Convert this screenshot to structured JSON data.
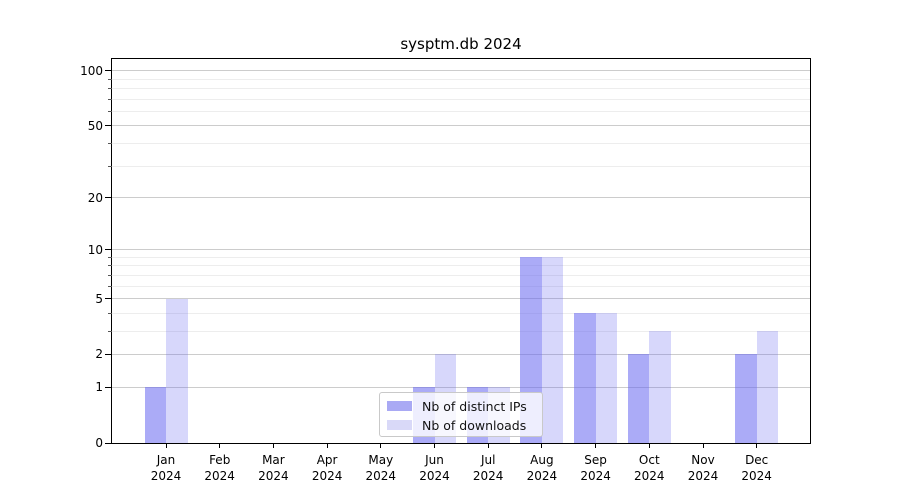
{
  "chart_data": {
    "type": "bar",
    "title": "sysptm.db 2024",
    "categories": [
      "Jan",
      "Feb",
      "Mar",
      "Apr",
      "May",
      "Jun",
      "Jul",
      "Aug",
      "Sep",
      "Oct",
      "Nov",
      "Dec"
    ],
    "x_year_label": "2024",
    "series": [
      {
        "name": "Nb of distinct IPs",
        "fill": "rgba(102,102,240,0.55)",
        "legend_fill": "#a9a9f4",
        "values": [
          1,
          0,
          0,
          0,
          0,
          1,
          1,
          9,
          4,
          2,
          0,
          2
        ]
      },
      {
        "name": "Nb of downloads",
        "fill": "rgba(102,102,240,0.26)",
        "legend_fill": "#d9d9f8",
        "values": [
          5,
          0,
          0,
          0,
          0,
          2,
          1,
          9,
          4,
          3,
          0,
          3
        ]
      }
    ],
    "y_axis": {
      "scale": "log1p",
      "major_ticks": [
        0,
        1,
        2,
        5,
        10,
        20,
        50,
        100
      ],
      "minor_ticks": [
        3,
        4,
        6,
        7,
        8,
        9,
        30,
        40,
        60,
        70,
        80,
        90
      ],
      "ylim": [
        0,
        116
      ],
      "grid": true
    },
    "legend_position": "lower center"
  },
  "colors": {
    "grid_major": "#cccccc",
    "grid_minor": "#ededed",
    "axis": "#000000"
  }
}
